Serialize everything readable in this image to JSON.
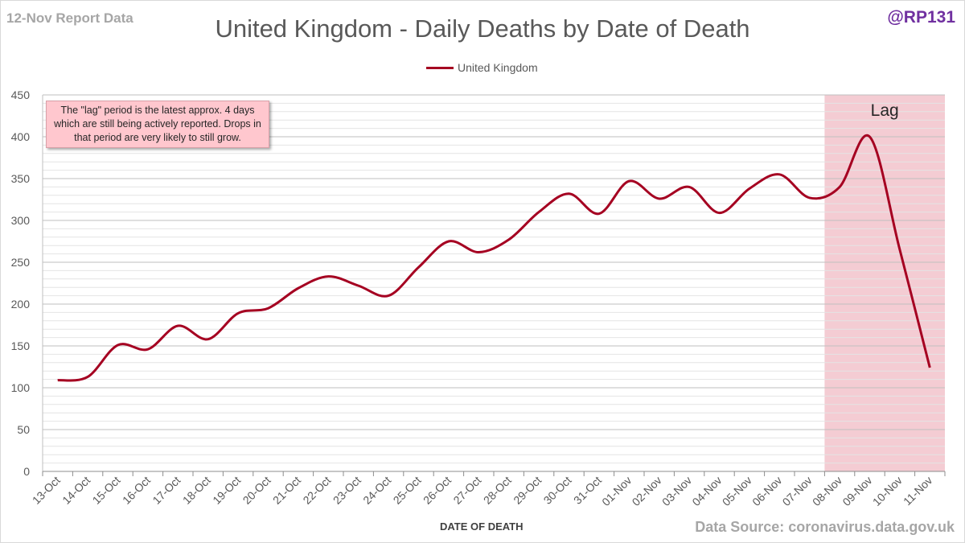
{
  "header": {
    "report_date": "12-Nov Report Data",
    "handle": "@RP131"
  },
  "footer": {
    "source": "Data Source: coronavirus.data.gov.uk"
  },
  "annotation": {
    "text": "The \"lag\" period is the latest approx. 4 days which are still being actively reported. Drops in that period are very likely to still grow."
  },
  "lag_label": "Lag",
  "colors": {
    "series": "#a50021",
    "lag_band": "#f4ccd3",
    "handle": "#7030a0",
    "annotation_bg": "#ffc7ce"
  },
  "chart_data": {
    "type": "line",
    "title": "United Kingdom - Daily Deaths by Date of Death",
    "xlabel": "DATE OF DEATH",
    "ylabel": "",
    "ylim": [
      0,
      450
    ],
    "ytick_step": 50,
    "minor_grid_step": 10,
    "grid": true,
    "legend_position": "top-center",
    "categories": [
      "13-Oct",
      "14-Oct",
      "15-Oct",
      "16-Oct",
      "17-Oct",
      "18-Oct",
      "19-Oct",
      "20-Oct",
      "21-Oct",
      "22-Oct",
      "23-Oct",
      "24-Oct",
      "25-Oct",
      "26-Oct",
      "27-Oct",
      "28-Oct",
      "29-Oct",
      "30-Oct",
      "31-Oct",
      "01-Nov",
      "02-Nov",
      "03-Nov",
      "04-Nov",
      "05-Nov",
      "06-Nov",
      "07-Nov",
      "08-Nov",
      "09-Nov",
      "10-Nov",
      "11-Nov"
    ],
    "series": [
      {
        "name": "United Kingdom",
        "values": [
          109,
          113,
          151,
          146,
          174,
          158,
          189,
          195,
          219,
          233,
          222,
          210,
          244,
          275,
          262,
          277,
          310,
          332,
          308,
          347,
          326,
          340,
          309,
          338,
          355,
          327,
          340,
          400,
          265,
          124
        ]
      }
    ],
    "lag_start": "08-Nov"
  }
}
